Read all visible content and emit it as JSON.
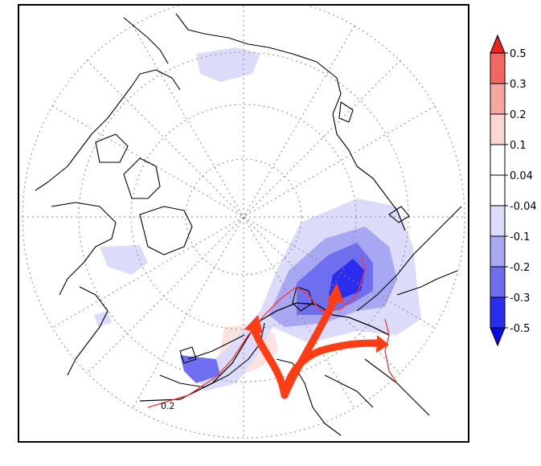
{
  "map": {
    "contour_label": "0.2",
    "colors": {
      "coast": "#000000",
      "grid": "#888888",
      "contour_black": "#000000",
      "contour_red": "#ff3333",
      "arrow": "#ff3c14"
    }
  },
  "colorbar": {
    "ticks": [
      "0.5",
      "0.3",
      "0.2",
      "0.1",
      "0.04",
      "-0.04",
      "-0.1",
      "-0.2",
      "-0.3",
      "-0.5"
    ],
    "colors": [
      "#e8261c",
      "#f06860",
      "#f6a6a0",
      "#fbd6d2",
      "#ffffff",
      "#ffffff",
      "#dcdcfa",
      "#a8a8f2",
      "#6e6ef0",
      "#2c2cee",
      "#0a0ae8"
    ]
  }
}
